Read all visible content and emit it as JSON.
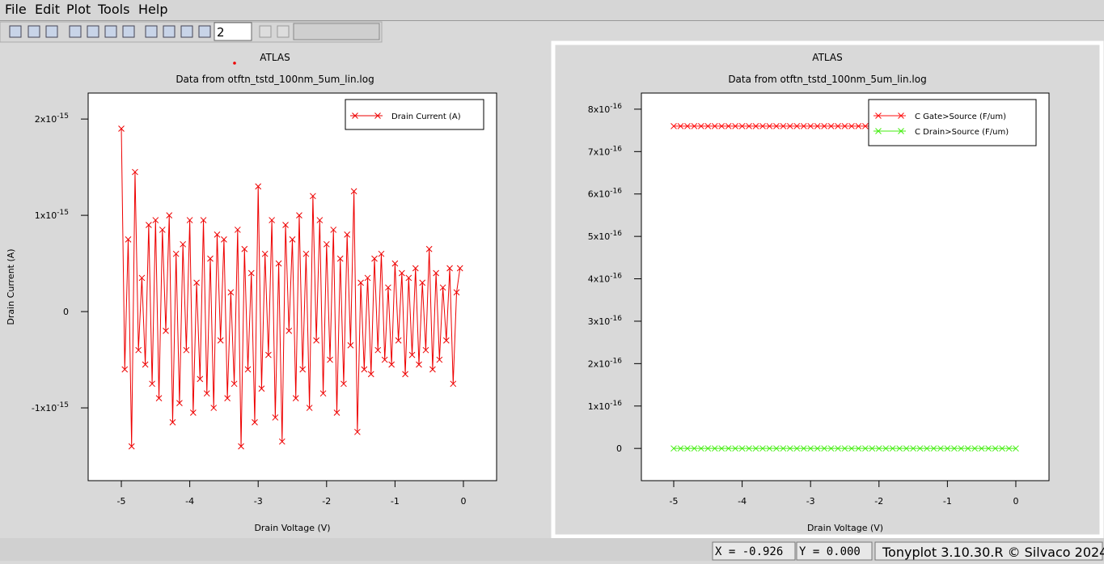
{
  "menu": [
    "File",
    "Edit",
    "Plot",
    "Tools",
    "Help"
  ],
  "toolbar": {
    "spinner": "2"
  },
  "status": {
    "x": "X = -0.926",
    "y": "Y = 0.000",
    "version": "Tonyplot 3.10.30.R © Silvaco 2024"
  },
  "chart_data": [
    {
      "type": "line",
      "title": "ATLAS",
      "subtitle": "Data from otftn_tstd_100nm_5um_lin.log",
      "x_label": "Drain Voltage (V)",
      "y_label": "Drain Current (A)",
      "legend": "upper right",
      "marker": "x",
      "xlim": [
        -5.485,
        0.485
      ],
      "ylim": [
        -1.756e-15,
        2.27e-15
      ],
      "xticks": [
        -5,
        -4,
        -3,
        -2,
        -1,
        0
      ],
      "yticks": [
        {
          "value": -1e-15,
          "label": "-1x10",
          "sup": "-15"
        },
        0,
        {
          "value": 1e-15,
          "label": "1x10",
          "sup": "-15"
        },
        {
          "value": 2e-15,
          "label": "2x10",
          "sup": "-15"
        }
      ],
      "x": [
        -5,
        -4.95,
        -4.9,
        -4.85,
        -4.8,
        -4.75,
        -4.7,
        -4.65,
        -4.6,
        -4.55,
        -4.5,
        -4.45,
        -4.4,
        -4.35,
        -4.3,
        -4.25,
        -4.2,
        -4.15,
        -4.1,
        -4.05,
        -4,
        -3.95,
        -3.9,
        -3.85,
        -3.8,
        -3.75,
        -3.7,
        -3.65,
        -3.6,
        -3.55,
        -3.5,
        -3.45,
        -3.4,
        -3.35,
        -3.3,
        -3.25,
        -3.2,
        -3.15,
        -3.1,
        -3.05,
        -3,
        -2.95,
        -2.9,
        -2.85,
        -2.8,
        -2.75,
        -2.7,
        -2.65,
        -2.6,
        -2.55,
        -2.5,
        -2.45,
        -2.4,
        -2.35,
        -2.3,
        -2.25,
        -2.2,
        -2.15,
        -2.1,
        -2.05,
        -2,
        -1.95,
        -1.9,
        -1.85,
        -1.8,
        -1.75,
        -1.7,
        -1.65,
        -1.6,
        -1.55,
        -1.5,
        -1.45,
        -1.4,
        -1.35,
        -1.3,
        -1.25,
        -1.2,
        -1.15,
        -1.1,
        -1.05,
        -1,
        -0.95,
        -0.9,
        -0.85,
        -0.8,
        -0.75,
        -0.7,
        -0.65,
        -0.6,
        -0.55,
        -0.5,
        -0.45,
        -0.4,
        -0.35,
        -0.3,
        -0.25,
        -0.2,
        -0.15,
        -0.1,
        -0.05
      ],
      "series": [
        {
          "name": "Drain Current (A)",
          "color": "#ee0000",
          "values": [
            1.9e-15,
            -6e-16,
            7.5e-16,
            -1.4e-15,
            1.45e-15,
            -4e-16,
            3.5e-16,
            -5.5e-16,
            9e-16,
            -7.5e-16,
            9.5e-16,
            -9e-16,
            8.5e-16,
            -2e-16,
            1e-15,
            -1.15e-15,
            6e-16,
            -9.5e-16,
            7e-16,
            -4e-16,
            9.5e-16,
            -1.05e-15,
            3e-16,
            -7e-16,
            9.5e-16,
            -8.5e-16,
            5.5e-16,
            -1e-15,
            8e-16,
            -3e-16,
            7.5e-16,
            -9e-16,
            2e-16,
            -7.5e-16,
            8.5e-16,
            -1.4e-15,
            6.5e-16,
            -6e-16,
            4e-16,
            -1.15e-15,
            1.3e-15,
            -8e-16,
            6e-16,
            -4.5e-16,
            9.5e-16,
            -1.1e-15,
            5e-16,
            -1.35e-15,
            9e-16,
            -2e-16,
            7.5e-16,
            -9e-16,
            1e-15,
            -6e-16,
            6e-16,
            -1e-15,
            1.2e-15,
            -3e-16,
            9.5e-16,
            -8.5e-16,
            7e-16,
            -5e-16,
            8.5e-16,
            -1.05e-15,
            5.5e-16,
            -7.5e-16,
            8e-16,
            -3.5e-16,
            1.25e-15,
            -1.25e-15,
            3e-16,
            -6e-16,
            3.5e-16,
            -6.5e-16,
            5.5e-16,
            -4e-16,
            6e-16,
            -5e-16,
            2.5e-16,
            -5.5e-16,
            5e-16,
            -3e-16,
            4e-16,
            -6.5e-16,
            3.5e-16,
            -4.5e-16,
            4.5e-16,
            -5.5e-16,
            3e-16,
            -4e-16,
            6.5e-16,
            -6e-16,
            4e-16,
            -5e-16,
            2.5e-16,
            -3e-16,
            4.5e-16,
            -7.5e-16,
            2e-16,
            4.5e-16
          ]
        }
      ]
    },
    {
      "type": "line",
      "title": "ATLAS",
      "subtitle": "Data from otftn_tstd_100nm_5um_lin.log",
      "x_label": "Drain Voltage (V)",
      "legend": "upper right",
      "marker": "x",
      "xlim": [
        -5.473,
        0.485
      ],
      "ylim": [
        -7.6e-17,
        8.38e-16
      ],
      "xticks": [
        -5,
        -4,
        -3,
        -2,
        -1,
        0
      ],
      "yticks": [
        0,
        {
          "value": 1e-16,
          "label": "1x10",
          "sup": "-16"
        },
        {
          "value": 2e-16,
          "label": "2x10",
          "sup": "-16"
        },
        {
          "value": 3e-16,
          "label": "3x10",
          "sup": "-16"
        },
        {
          "value": 4e-16,
          "label": "4x10",
          "sup": "-16"
        },
        {
          "value": 5e-16,
          "label": "5x10",
          "sup": "-16"
        },
        {
          "value": 6e-16,
          "label": "6x10",
          "sup": "-16"
        },
        {
          "value": 7e-16,
          "label": "7x10",
          "sup": "-16"
        },
        {
          "value": 8e-16,
          "label": "8x10",
          "sup": "-16"
        }
      ],
      "x": [
        -5,
        -4.9,
        -4.8,
        -4.7,
        -4.6,
        -4.5,
        -4.4,
        -4.3,
        -4.2,
        -4.1,
        -4,
        -3.9,
        -3.8,
        -3.7,
        -3.6,
        -3.5,
        -3.4,
        -3.3,
        -3.2,
        -3.1,
        -3,
        -2.9,
        -2.8,
        -2.7,
        -2.6,
        -2.5,
        -2.4,
        -2.3,
        -2.2,
        -2.1,
        -2,
        -1.9,
        -1.8,
        -1.7,
        -1.6,
        -1.5,
        -1.4,
        -1.3,
        -1.2,
        -1.1,
        -1,
        -0.9,
        -0.8,
        -0.7,
        -0.6,
        -0.5,
        -0.4,
        -0.3,
        -0.2,
        -0.1,
        0
      ],
      "series": [
        {
          "name": "C Gate>Source (F/um)",
          "color": "#ff1111",
          "values": [
            7.6e-16,
            7.6e-16,
            7.6e-16,
            7.6e-16,
            7.6e-16,
            7.6e-16,
            7.6e-16,
            7.6e-16,
            7.6e-16,
            7.6e-16,
            7.6e-16,
            7.6e-16,
            7.6e-16,
            7.6e-16,
            7.6e-16,
            7.6e-16,
            7.6e-16,
            7.6e-16,
            7.6e-16,
            7.6e-16,
            7.6e-16,
            7.6e-16,
            7.6e-16,
            7.6e-16,
            7.6e-16,
            7.6e-16,
            7.6e-16,
            7.6e-16,
            7.6e-16,
            7.6e-16,
            7.6e-16,
            7.6e-16,
            7.6e-16,
            7.6e-16,
            7.6e-16,
            7.6e-16,
            7.6e-16,
            7.6e-16,
            7.6e-16,
            7.6e-16,
            7.6e-16,
            7.6e-16,
            7.6e-16,
            7.6e-16,
            7.6e-16,
            7.6e-16,
            7.6e-16,
            7.6e-16,
            7.6e-16,
            7.6e-16,
            7.6e-16
          ]
        },
        {
          "name": "C Drain>Source (F/um)",
          "color": "#44ee11",
          "values": [
            0,
            0,
            0,
            0,
            0,
            0,
            0,
            0,
            0,
            0,
            0,
            0,
            0,
            0,
            0,
            0,
            0,
            0,
            0,
            0,
            0,
            0,
            0,
            0,
            0,
            0,
            0,
            0,
            0,
            0,
            0,
            0,
            0,
            0,
            0,
            0,
            0,
            0,
            0,
            0,
            0,
            0,
            0,
            0,
            0,
            0,
            0,
            0,
            0,
            0,
            0
          ]
        }
      ]
    }
  ]
}
